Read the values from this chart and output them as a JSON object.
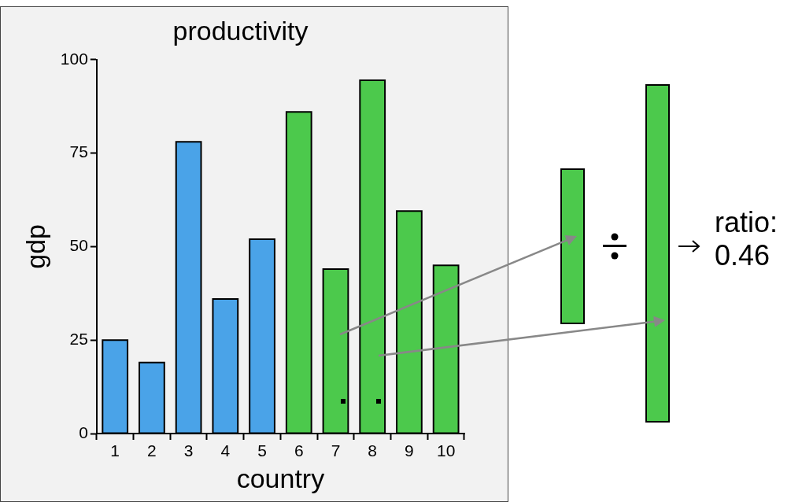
{
  "chart_data": {
    "type": "bar",
    "title": "productivity",
    "xlabel": "country",
    "ylabel": "gdp",
    "categories": [
      "1",
      "2",
      "3",
      "4",
      "5",
      "6",
      "7",
      "8",
      "9",
      "10"
    ],
    "values": [
      25,
      19,
      78,
      36,
      52,
      86,
      44,
      94.5,
      59.5,
      45
    ],
    "colors": [
      "#4aa3e8",
      "#4aa3e8",
      "#4aa3e8",
      "#4aa3e8",
      "#4aa3e8",
      "#4cc94c",
      "#4cc94c",
      "#4cc94c",
      "#4cc94c",
      "#4cc94c"
    ],
    "ylim": [
      0,
      100
    ],
    "yticks": [
      0,
      25,
      50,
      75,
      100
    ],
    "grid": false,
    "legend": false,
    "annotations": [
      "ratio: 0.46"
    ]
  }
}
